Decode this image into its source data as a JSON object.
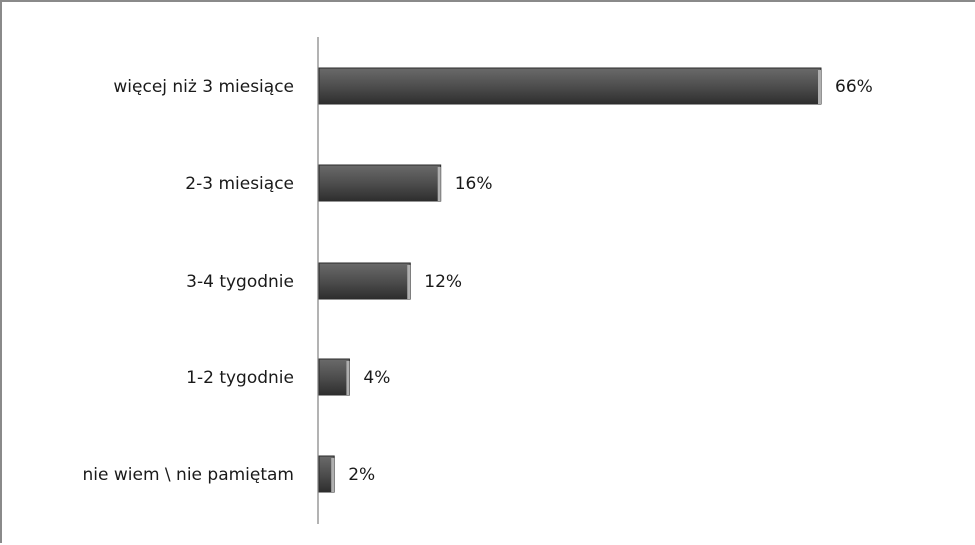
{
  "chart_data": {
    "type": "bar",
    "orientation": "horizontal",
    "categories": [
      "więcej niż 3 miesiące",
      "2-3 miesiące",
      "3-4 tygodnie",
      "1-2 tygodnie",
      "nie wiem \\ nie pamiętam"
    ],
    "values": [
      66,
      16,
      12,
      4,
      2
    ],
    "value_labels": [
      "66%",
      "16%",
      "12%",
      "4%",
      "2%"
    ],
    "unit": "%",
    "xlim": [
      0,
      66
    ],
    "grid": false,
    "legend": "none",
    "bar_color": "#505050"
  }
}
